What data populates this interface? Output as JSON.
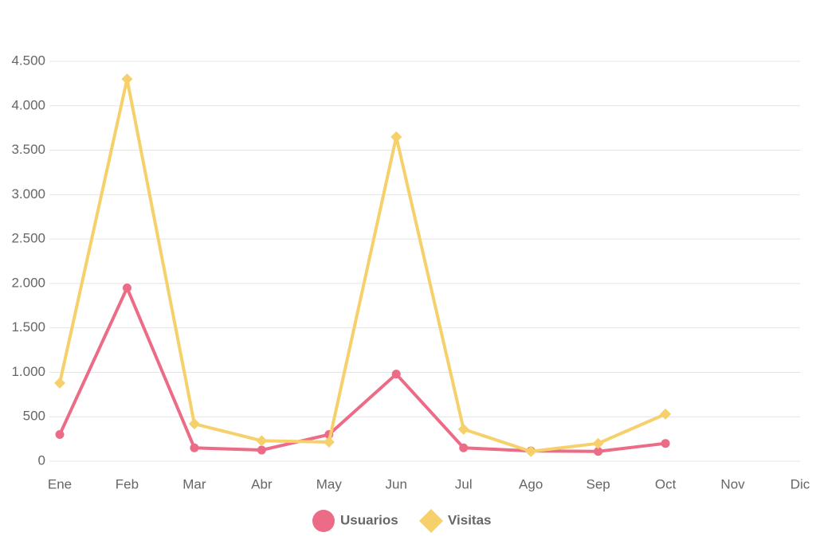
{
  "chart_data": {
    "type": "line",
    "categories": [
      "Ene",
      "Feb",
      "Mar",
      "Abr",
      "May",
      "Jun",
      "Jul",
      "Ago",
      "Sep",
      "Oct",
      "Nov",
      "Dic"
    ],
    "series": [
      {
        "name": "Usuarios",
        "color": "#ec6b86",
        "marker": "circle",
        "values": [
          300,
          1950,
          150,
          125,
          300,
          980,
          150,
          115,
          110,
          200,
          null,
          null
        ]
      },
      {
        "name": "Visitas",
        "color": "#f6d06b",
        "marker": "diamond",
        "values": [
          880,
          4300,
          420,
          230,
          215,
          3650,
          360,
          110,
          200,
          530,
          null,
          null
        ]
      }
    ],
    "ylim": [
      0,
      4500
    ],
    "yticks": [
      0,
      500,
      {
        "value": 1000,
        "label": "1.000"
      },
      {
        "value": 1500,
        "label": "1.500"
      },
      {
        "value": 2000,
        "label": "2.000"
      },
      {
        "value": 2500,
        "label": "2.500"
      },
      {
        "value": 3000,
        "label": "3.000"
      },
      {
        "value": 3500,
        "label": "3.500"
      },
      {
        "value": 4000,
        "label": "4.000"
      },
      {
        "value": 4500,
        "label": "4.500"
      }
    ],
    "grid": true,
    "legend": "bottom"
  }
}
